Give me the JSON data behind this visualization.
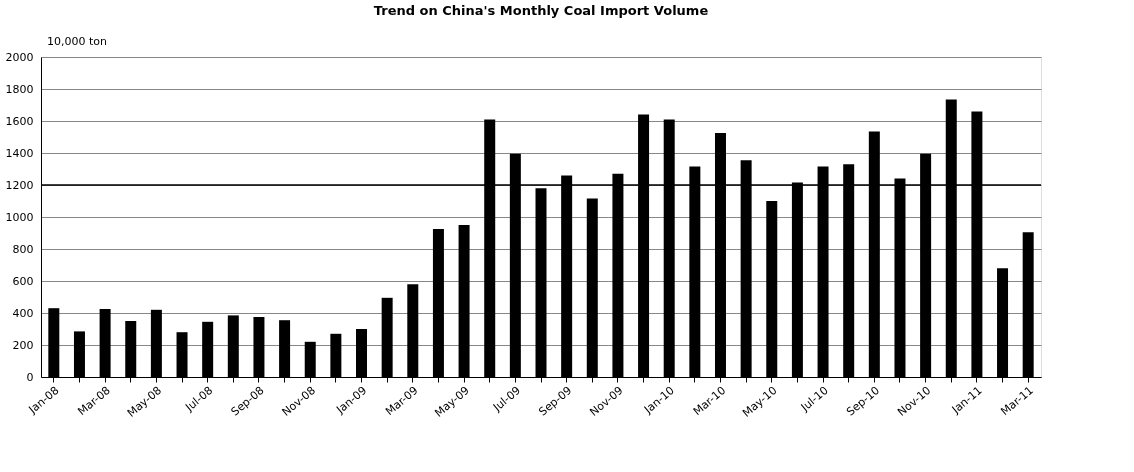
{
  "chart_data": {
    "type": "bar",
    "title": "Trend on China's Monthly Coal Import Volume",
    "ylabel": "10,000 ton",
    "categories": [
      "Jan-08",
      null,
      "Mar-08",
      null,
      "May-08",
      null,
      "Jul-08",
      null,
      "Sep-08",
      null,
      "Nov-08",
      null,
      "Jan-09",
      null,
      "Mar-09",
      null,
      "May-09",
      null,
      "Jul-09",
      null,
      "Sep-09",
      null,
      "Nov-09",
      null,
      "Jan-10",
      null,
      "Mar-10",
      null,
      "May-10",
      null,
      "Jul-10",
      null,
      "Sep-10",
      null,
      "Nov-10",
      null,
      "Jan-11",
      null,
      "Mar-11"
    ],
    "values": [
      430,
      285,
      425,
      350,
      420,
      280,
      345,
      385,
      375,
      355,
      220,
      270,
      300,
      495,
      580,
      925,
      950,
      1610,
      1395,
      1180,
      1260,
      1115,
      1270,
      1640,
      1610,
      1315,
      1525,
      1355,
      1100,
      1215,
      1315,
      1330,
      1535,
      1240,
      1395,
      1735,
      1660,
      680,
      905
    ],
    "color": "#000000",
    "ylim": [
      0,
      2000
    ],
    "yticks": [
      0,
      200,
      400,
      600,
      800,
      1000,
      1200,
      1400,
      1600,
      1800,
      2000
    ],
    "grid": "y",
    "ref_lines": [
      {
        "axis": "y",
        "value": 1200,
        "label": null,
        "color": "#000000"
      }
    ]
  }
}
